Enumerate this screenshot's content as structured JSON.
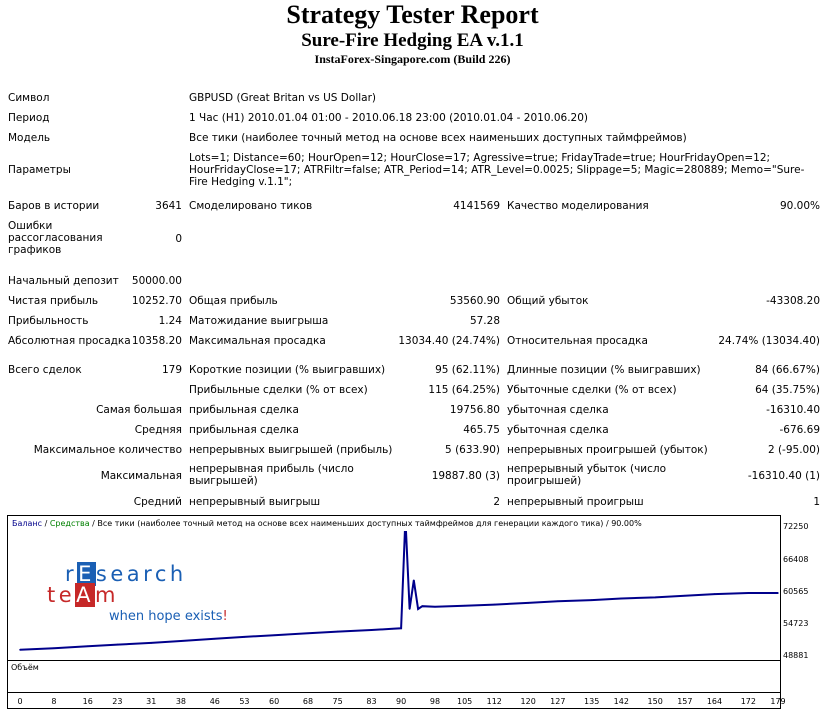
{
  "header": {
    "title": "Strategy Tester Report",
    "subtitle": "Sure-Fire Hedging EA v.1.1",
    "build": "InstaForex-Singapore.com (Build 226)"
  },
  "info": {
    "symbol_label": "Символ",
    "symbol_value": "GBPUSD (Great Britan vs US Dollar)",
    "period_label": "Период",
    "period_value": "1 Час (H1) 2010.01.04 01:00 - 2010.06.18 23:00 (2010.01.04 - 2010.06.20)",
    "model_label": "Модель",
    "model_value": "Все тики (наиболее точный метод на основе всех наименьших доступных таймфреймов)",
    "params_label": "Параметры",
    "params_value": "Lots=1; Distance=60; HourOpen=12; HourClose=17; Agressive=true; FridayTrade=true; HourFridayOpen=12; HourFridayClose=17; ATRFiltr=false; ATR_Period=14; ATR_Level=0.0025; Slippage=5; Magic=280889; Memo=\"Sure-Fire Hedging v.1.1\";",
    "bars_label": "Баров в истории",
    "bars_value": "3641",
    "ticks_label": "Смоделировано тиков",
    "ticks_value": "4141569",
    "quality_label": "Качество моделирования",
    "quality_value": "90.00%",
    "errors_label": "Ошибки рассогласования графиков",
    "errors_value": "0"
  },
  "stats": {
    "deposit_label": "Начальный депозит",
    "deposit_value": "50000.00",
    "net_profit_label": "Чистая прибыль",
    "net_profit_value": "10252.70",
    "gross_profit_label": "Общая прибыль",
    "gross_profit_value": "53560.90",
    "gross_loss_label": "Общий убыток",
    "gross_loss_value": "-43308.20",
    "profit_factor_label": "Прибыльность",
    "profit_factor_value": "1.24",
    "expected_payoff_label": "Матожидание выигрыша",
    "expected_payoff_value": "57.28",
    "abs_dd_label": "Абсолютная просадка",
    "abs_dd_value": "10358.20",
    "max_dd_label": "Максимальная просадка",
    "max_dd_value": "13034.40 (24.74%)",
    "rel_dd_label": "Относительная просадка",
    "rel_dd_value": "24.74% (13034.40)",
    "total_trades_label": "Всего сделок",
    "total_trades_value": "179",
    "short_label": "Короткие позиции (% выигравших)",
    "short_value": "95 (62.11%)",
    "long_label": "Длинные позиции (% выигравших)",
    "long_value": "84 (66.67%)",
    "profit_trades_label": "Прибыльные сделки (% от всех)",
    "profit_trades_value": "115 (64.25%)",
    "loss_trades_label": "Убыточные сделки (% от всех)",
    "loss_trades_value": "64 (35.75%)",
    "largest_label": "Самая большая",
    "largest_profit_label": "прибыльная сделка",
    "largest_profit_value": "19756.80",
    "largest_loss_label": "убыточная сделка",
    "largest_loss_value": "-16310.40",
    "average_label": "Средняя",
    "average_profit_label": "прибыльная сделка",
    "average_profit_value": "465.75",
    "average_loss_label": "убыточная сделка",
    "average_loss_value": "-676.69",
    "max_count_label": "Максимальное количество",
    "max_consec_wins_label": "непрерывных выигрышей (прибыль)",
    "max_consec_wins_value": "5 (633.90)",
    "max_consec_losses_label": "непрерывных проигрышей (убыток)",
    "max_consec_losses_value": "2 (-95.00)",
    "maximal_label": "Максимальная",
    "max_consec_profit_label": "непрерывная прибыль (число выигрышей)",
    "max_consec_profit_value": "19887.80 (3)",
    "max_consec_loss_label": "непрерывный убыток (число проигрышей)",
    "max_consec_loss_value": "-16310.40 (1)",
    "avg_label": "Средний",
    "avg_consec_wins_label": "непрерывный выигрыш",
    "avg_consec_wins_value": "2",
    "avg_consec_losses_label": "непрерывный проигрыш",
    "avg_consec_losses_value": "1"
  },
  "chart": {
    "legend_balance": "Баланс",
    "legend_sep1": " / ",
    "legend_equity": "Средства",
    "legend_rest": " / Все тики (наиболее точный метод на основе всех наименьших доступных таймфреймов для генерации каждого тика) / 90.00%",
    "volume_label": "Объём",
    "balance_color": "#00008b",
    "equity_color": "#008000"
  },
  "logo": {
    "research_pre": "r",
    "research_box": "E",
    "research_post": "search",
    "team_pre": "te",
    "team_box": "A",
    "team_post": "m",
    "tagline": "when hope exists",
    "tagline_bang": "!"
  },
  "chart_data": {
    "type": "line",
    "x_ticks": [
      "0",
      "8",
      "16",
      "23",
      "31",
      "38",
      "46",
      "53",
      "60",
      "68",
      "75",
      "83",
      "90",
      "98",
      "105",
      "112",
      "120",
      "127",
      "135",
      "142",
      "150",
      "157",
      "164",
      "172",
      "179"
    ],
    "y_ticks": [
      "72250",
      "66408",
      "60565",
      "54723",
      "48881"
    ],
    "ylim": [
      48881,
      72250
    ],
    "xlim": [
      0,
      179
    ],
    "series": [
      {
        "name": "Баланс",
        "x": [
          0,
          4,
          8,
          16,
          23,
          31,
          38,
          46,
          53,
          60,
          68,
          75,
          83,
          88,
          90,
          91,
          92,
          93,
          94,
          95,
          98,
          105,
          112,
          120,
          127,
          135,
          142,
          150,
          157,
          164,
          172,
          179
        ],
        "values": [
          50000,
          50150,
          50300,
          50650,
          50950,
          51250,
          51600,
          52000,
          52350,
          52650,
          53000,
          53300,
          53600,
          53800,
          53900,
          73800,
          57400,
          62600,
          57400,
          57900,
          57800,
          58000,
          58200,
          58500,
          58800,
          59000,
          59300,
          59500,
          59800,
          60100,
          60300,
          60300
        ]
      }
    ]
  }
}
